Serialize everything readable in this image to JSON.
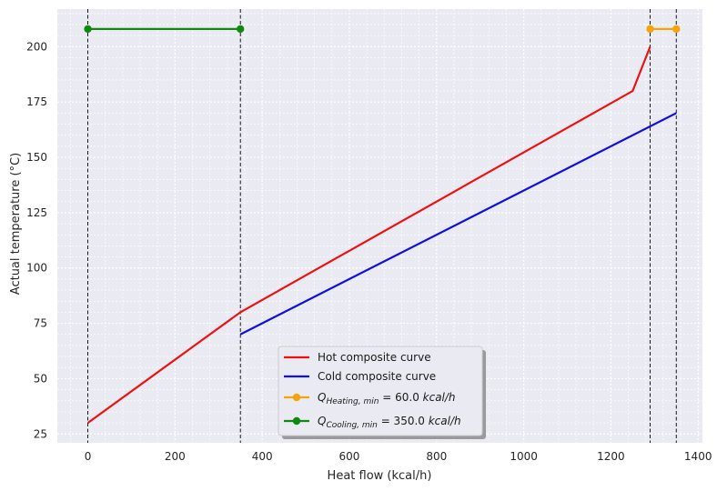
{
  "chart_data": {
    "type": "line",
    "xlabel": "Heat flow (kcal/h)",
    "ylabel": "Actual temperature (°C)",
    "xlim": [
      -70,
      1410
    ],
    "ylim": [
      21,
      217
    ],
    "xticks": [
      0,
      200,
      400,
      600,
      800,
      1000,
      1200,
      1400
    ],
    "yticks": [
      25,
      50,
      75,
      100,
      125,
      150,
      175,
      200
    ],
    "grid": true,
    "legend_position": "bottom-center",
    "series": [
      {
        "name": "Hot composite curve",
        "color": "#ee1111",
        "marker": false,
        "x": [
          0,
          350,
          1250,
          1290
        ],
        "y": [
          30,
          80,
          180,
          200
        ]
      },
      {
        "name": "Cold composite curve",
        "color": "#1111dd",
        "marker": false,
        "x": [
          350,
          1350
        ],
        "y": [
          70,
          170
        ]
      },
      {
        "name": "Q_{Heating, min} = 60.0  kcal/h",
        "color": "#f5a30a",
        "marker": true,
        "x": [
          1290,
          1350
        ],
        "y": [
          208,
          208
        ],
        "legend_parts": {
          "Q": "Q",
          "sub": "Heating, min",
          "eq": " = 60.0 ",
          "unit": "kcal/h"
        }
      },
      {
        "name": "Q_{Cooling, min} = 350.0  kcal/h",
        "color": "#118811",
        "marker": true,
        "x": [
          0,
          350
        ],
        "y": [
          208,
          208
        ],
        "legend_parts": {
          "Q": "Q",
          "sub": "Cooling, min",
          "eq": " = 350.0 ",
          "unit": "kcal/h"
        }
      }
    ],
    "vlines": [
      0,
      350,
      1290,
      1350
    ]
  }
}
